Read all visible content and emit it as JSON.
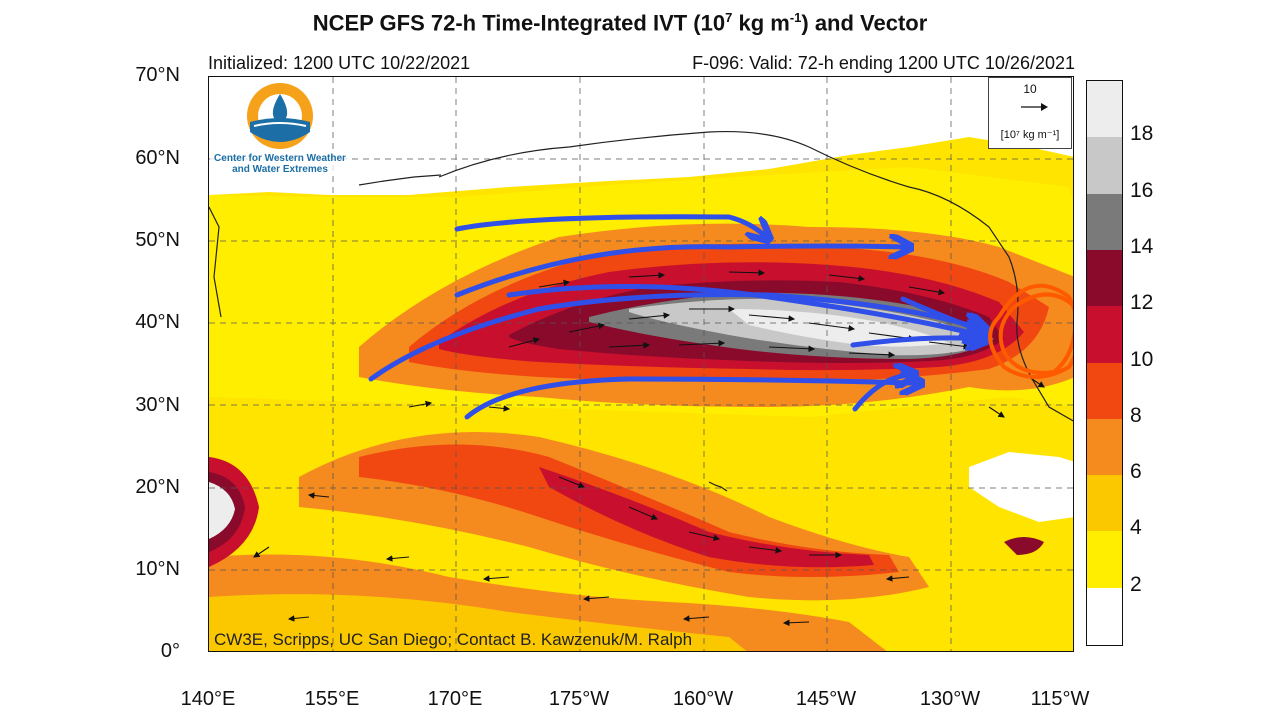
{
  "title_main": "NCEP GFS 72-h Time-Integrated IVT (10",
  "title_exp": "7",
  "title_unit": " kg m",
  "title_unit_exp": "-1",
  "title_tail": ") and Vector",
  "initialized": "Initialized: 1200 UTC 10/22/2021",
  "valid": "F-096: Valid: 72-h ending 1200 UTC 10/26/2021",
  "logo_text_line1": "Center for Western Weather",
  "logo_text_line2": "and Water Extremes",
  "reference_vector": {
    "value": "10",
    "unit": "[10⁷ kg m⁻¹]"
  },
  "credit": "CW3E, Scripps, UC San Diego; Contact B. Kawzenuk/M. Ralph",
  "lat_labels": [
    "70°N",
    "60°N",
    "50°N",
    "40°N",
    "30°N",
    "20°N",
    "10°N",
    "0°"
  ],
  "lon_labels": [
    "140°E",
    "155°E",
    "170°E",
    "175°W",
    "160°W",
    "145°W",
    "130°W",
    "115°W"
  ],
  "colorbar": {
    "labels": [
      "18",
      "16",
      "14",
      "12",
      "10",
      "8",
      "6",
      "4",
      "2"
    ],
    "colors": [
      "#ededed",
      "#c8c8c8",
      "#7a7a7a",
      "#8a0a2c",
      "#c8102e",
      "#f04810",
      "#f58a1e",
      "#fbc800",
      "#ffee00",
      "#ffffff"
    ]
  },
  "colors": {
    "river_core": "#c9c9c9",
    "annotation_arrows": "#2f4fe8",
    "highlight_circle": "#ff5a00"
  }
}
